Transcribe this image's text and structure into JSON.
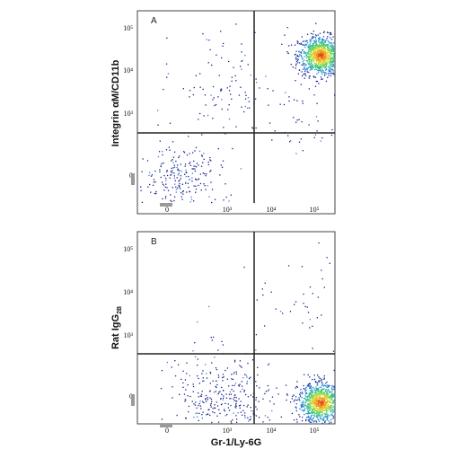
{
  "chart_data": [
    {
      "type": "scatter",
      "panel_label": "A",
      "xlabel": "",
      "ylabel": "Integrin αM/CD11b",
      "x_ticks": [
        "0",
        "10³",
        "10⁴",
        "10⁵"
      ],
      "y_ticks": [
        "0",
        "10³",
        "10⁴",
        "10⁵"
      ],
      "xscale": "biexponential",
      "yscale": "biexponential",
      "gate": {
        "x": 3500,
        "y": 500
      },
      "quadrant_fractions": {
        "upper_left": 0.07,
        "upper_right": 0.73,
        "lower_left": 0.17,
        "lower_right": 0.03
      },
      "populations": [
        {
          "x": 80000,
          "y": 12000,
          "spread_decades": 0.3,
          "fraction": 0.72,
          "dense": true
        },
        {
          "x": 60,
          "y": 0,
          "spread_decades": 0.5,
          "fraction": 0.17,
          "dense": false
        },
        {
          "x": 300,
          "y": 2000,
          "spread_decades": 0.8,
          "fraction": 0.08,
          "dense": false
        },
        {
          "x": 20000,
          "y": 150,
          "spread_decades": 0.6,
          "fraction": 0.03,
          "dense": false
        }
      ]
    },
    {
      "type": "scatter",
      "panel_label": "B",
      "xlabel": "Gr-1/Ly-6G",
      "ylabel": "Rat IgG",
      "ylabel_sub": "2B",
      "x_ticks": [
        "0",
        "10³",
        "10⁴",
        "10⁵"
      ],
      "y_ticks": [
        "0",
        "10³",
        "10⁴",
        "10⁵"
      ],
      "xscale": "biexponential",
      "yscale": "biexponential",
      "gate": {
        "x": 3500,
        "y": 500
      },
      "quadrant_fractions": {
        "upper_left": 0.01,
        "upper_right": 0.02,
        "lower_left": 0.27,
        "lower_right": 0.7
      },
      "populations": [
        {
          "x": 80000,
          "y": 0,
          "spread_decades": 0.3,
          "fraction": 0.7,
          "dense": true
        },
        {
          "x": 200,
          "y": 0,
          "spread_decades": 0.7,
          "fraction": 0.27,
          "dense": false
        },
        {
          "x": 40000,
          "y": 3000,
          "spread_decades": 0.8,
          "fraction": 0.03,
          "dense": false
        }
      ]
    }
  ]
}
